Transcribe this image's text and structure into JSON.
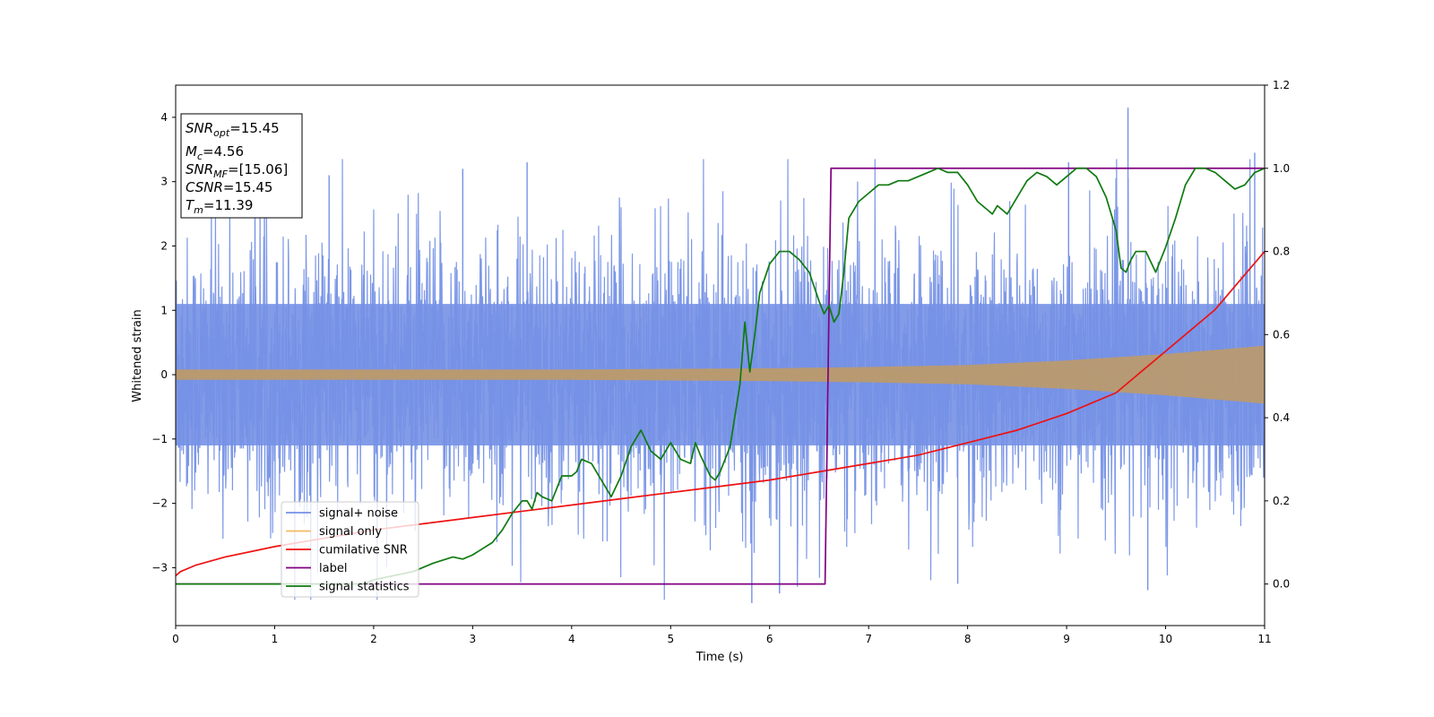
{
  "chart_data": {
    "type": "line",
    "xlabel": "Time (s)",
    "ylabel_left": "Whitened strain",
    "ylabel_right": "",
    "xlim": [
      0,
      11
    ],
    "ylim_left": [
      -3.9,
      4.5
    ],
    "ylim_right": [
      -0.1,
      1.2
    ],
    "xticks": [
      0,
      1,
      2,
      3,
      4,
      5,
      6,
      7,
      8,
      9,
      10,
      11
    ],
    "xtick_labels": [
      "0",
      "1",
      "2",
      "3",
      "4",
      "5",
      "6",
      "7",
      "8",
      "9",
      "10",
      "11"
    ],
    "yticks_left": [
      -3,
      -2,
      -1,
      0,
      1,
      2,
      3,
      4
    ],
    "ytick_labels_left": [
      "−3",
      "−2",
      "−1",
      "0",
      "1",
      "2",
      "3",
      "4"
    ],
    "yticks_right": [
      0.0,
      0.2,
      0.4,
      0.6,
      0.8,
      1.0,
      1.2
    ],
    "ytick_labels_right": [
      "0.0",
      "0.2",
      "0.4",
      "0.6",
      "0.8",
      "1.0",
      "1.2"
    ],
    "grid": false,
    "legend_position": "lower-left",
    "colors": {
      "noise": "#7591e6",
      "signal": "#b99a70",
      "signal_legend": "#f5b961",
      "cumulative": "#ee1111",
      "label": "#800080",
      "statistics": "#107a10"
    },
    "annotation": {
      "lines": [
        {
          "base": "SNR",
          "sub": "opt",
          "value": "=15.45"
        },
        {
          "base": "M",
          "sub": "c",
          "value": "=4.56"
        },
        {
          "base": "SNR",
          "sub": "MF",
          "value": "=[15.06]"
        },
        {
          "base": "CSNR",
          "sub": "",
          "value": "=15.45"
        },
        {
          "base": "T",
          "sub": "m",
          "value": "=11.39"
        }
      ]
    },
    "series": [
      {
        "name": "signal+ noise",
        "axis": "left",
        "description_envelope": {
          "typical_amplitude": 1.6,
          "max_peak": 4.15,
          "min_peak": -3.55
        }
      },
      {
        "name": "signal only",
        "axis": "left",
        "amplitude_x": [
          0,
          2,
          4,
          6,
          7,
          8,
          9,
          10,
          11
        ],
        "amplitude_y": [
          0.08,
          0.08,
          0.08,
          0.1,
          0.12,
          0.15,
          0.22,
          0.32,
          0.45
        ]
      },
      {
        "name": "cumilative SNR",
        "axis": "right",
        "x": [
          0,
          0.05,
          0.2,
          0.5,
          1,
          1.5,
          2,
          2.5,
          3,
          3.5,
          4,
          4.5,
          5,
          5.5,
          6,
          6.5,
          7,
          7.5,
          8,
          8.5,
          9,
          9.5,
          10,
          10.5,
          11
        ],
        "y": [
          0.02,
          0.03,
          0.045,
          0.065,
          0.09,
          0.11,
          0.13,
          0.145,
          0.16,
          0.175,
          0.19,
          0.205,
          0.22,
          0.235,
          0.25,
          0.27,
          0.29,
          0.31,
          0.34,
          0.37,
          0.41,
          0.46,
          0.56,
          0.66,
          0.8
        ]
      },
      {
        "name": "label",
        "axis": "right",
        "x": [
          0,
          6.56,
          6.62,
          11
        ],
        "y": [
          0,
          0,
          1,
          1
        ]
      },
      {
        "name": "signal statistics",
        "axis": "right",
        "x": [
          0,
          1.9,
          2,
          2.2,
          2.4,
          2.6,
          2.8,
          2.9,
          3.0,
          3.1,
          3.2,
          3.3,
          3.4,
          3.5,
          3.55,
          3.6,
          3.65,
          3.7,
          3.8,
          3.9,
          4.0,
          4.05,
          4.1,
          4.2,
          4.3,
          4.4,
          4.5,
          4.6,
          4.7,
          4.8,
          4.9,
          5.0,
          5.1,
          5.2,
          5.25,
          5.3,
          5.4,
          5.45,
          5.5,
          5.6,
          5.7,
          5.75,
          5.8,
          5.85,
          5.9,
          6.0,
          6.1,
          6.2,
          6.3,
          6.4,
          6.5,
          6.55,
          6.6,
          6.65,
          6.7,
          6.75,
          6.8,
          6.9,
          7.0,
          7.1,
          7.2,
          7.3,
          7.4,
          7.5,
          7.6,
          7.7,
          7.8,
          7.9,
          8.0,
          8.1,
          8.2,
          8.25,
          8.3,
          8.4,
          8.5,
          8.6,
          8.7,
          8.8,
          8.9,
          9.0,
          9.1,
          9.2,
          9.3,
          9.4,
          9.5,
          9.55,
          9.6,
          9.65,
          9.7,
          9.8,
          9.9,
          10.0,
          10.1,
          10.2,
          10.3,
          10.4,
          10.5,
          10.6,
          10.7,
          10.8,
          10.9,
          11.0
        ],
        "y": [
          0,
          0,
          0.01,
          0.02,
          0.03,
          0.05,
          0.065,
          0.06,
          0.07,
          0.085,
          0.1,
          0.13,
          0.17,
          0.2,
          0.2,
          0.18,
          0.22,
          0.21,
          0.2,
          0.26,
          0.26,
          0.27,
          0.3,
          0.29,
          0.25,
          0.21,
          0.26,
          0.33,
          0.37,
          0.32,
          0.3,
          0.34,
          0.3,
          0.29,
          0.34,
          0.31,
          0.26,
          0.25,
          0.27,
          0.33,
          0.48,
          0.63,
          0.51,
          0.6,
          0.7,
          0.77,
          0.8,
          0.8,
          0.78,
          0.75,
          0.68,
          0.65,
          0.67,
          0.63,
          0.65,
          0.75,
          0.88,
          0.92,
          0.94,
          0.96,
          0.96,
          0.97,
          0.97,
          0.98,
          0.99,
          1.0,
          0.99,
          0.99,
          0.96,
          0.92,
          0.9,
          0.89,
          0.91,
          0.89,
          0.93,
          0.97,
          0.99,
          0.98,
          0.96,
          0.98,
          1.0,
          1.0,
          0.98,
          0.93,
          0.85,
          0.76,
          0.75,
          0.78,
          0.8,
          0.8,
          0.75,
          0.81,
          0.88,
          0.96,
          1.0,
          1.0,
          0.99,
          0.97,
          0.95,
          0.96,
          0.99,
          1.0
        ]
      }
    ]
  }
}
